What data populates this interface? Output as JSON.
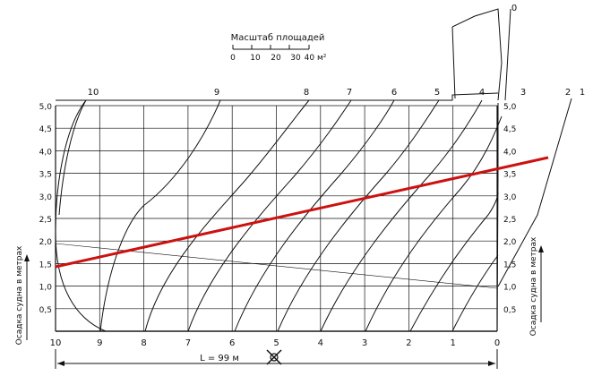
{
  "scale": {
    "title": "Масштаб площадей",
    "ticks": [
      "0",
      "10",
      "20",
      "30",
      "40 м²"
    ]
  },
  "draft_labels": [
    "0,5",
    "1,0",
    "1,5",
    "2,0",
    "2,5",
    "3,0",
    "3,5",
    "4,0",
    "4,5",
    "5,0"
  ],
  "bottom_stations": [
    "10",
    "9",
    "8",
    "7",
    "6",
    "5",
    "4",
    "3",
    "2",
    "1",
    "0"
  ],
  "top_stations": [
    {
      "label": "10"
    },
    {
      "label": "9"
    },
    {
      "label": "8"
    },
    {
      "label": "7"
    },
    {
      "label": "6"
    },
    {
      "label": "5"
    },
    {
      "label": "4"
    },
    {
      "label": "3"
    },
    {
      "label": "2"
    },
    {
      "label": "1"
    },
    {
      "label": "0"
    }
  ],
  "axis_label_left": "Осадка судна в метрах",
  "axis_label_right": "Осадка судна в метрах",
  "length_label": "L = 99 м",
  "waterline_color": "#cc1111"
}
